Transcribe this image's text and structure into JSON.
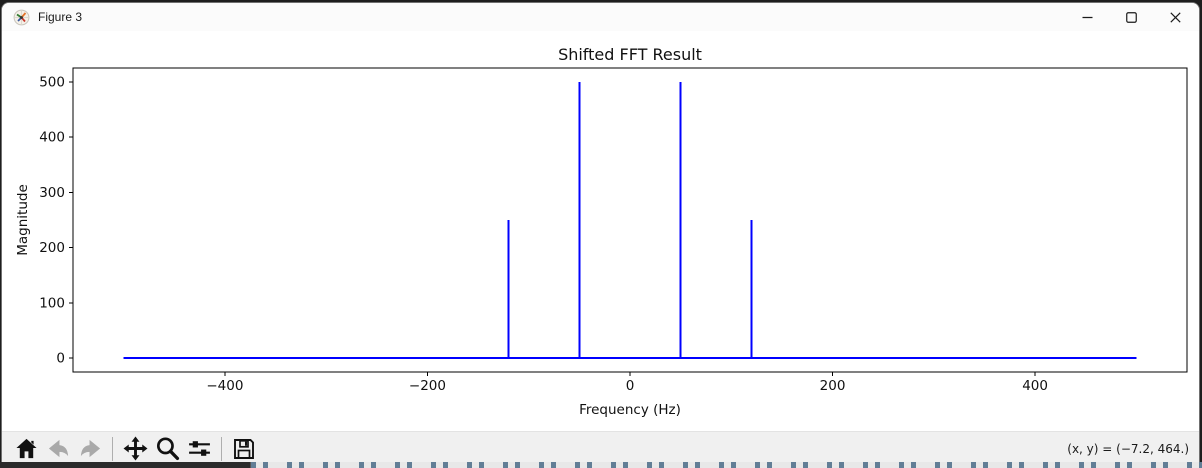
{
  "window": {
    "title": "Figure 3",
    "icon": "matplotlib-logo-icon",
    "controls": {
      "minimize_label": "Minimize",
      "maximize_label": "Maximize",
      "close_label": "Close"
    }
  },
  "chart_data": {
    "type": "line",
    "title": "Shifted FFT Result",
    "xlabel": "Frequency (Hz)",
    "ylabel": "Magnitude",
    "xlim": [
      -550,
      550
    ],
    "ylim": [
      -25,
      525
    ],
    "x_ticks": [
      -400,
      -200,
      0,
      200,
      400
    ],
    "x_tick_labels": [
      "−400",
      "−200",
      "0",
      "200",
      "400"
    ],
    "y_ticks": [
      0,
      100,
      200,
      300,
      400,
      500
    ],
    "y_tick_labels": [
      "0",
      "100",
      "200",
      "300",
      "400",
      "500"
    ],
    "line_color": "#0000ff",
    "grid": false,
    "legend": null,
    "baseline": {
      "x_start": -500,
      "x_end": 500,
      "y": 0
    },
    "spikes": [
      {
        "frequency": -120,
        "magnitude": 250
      },
      {
        "frequency": -50,
        "magnitude": 500
      },
      {
        "frequency": 50,
        "magnitude": 500
      },
      {
        "frequency": 120,
        "magnitude": 250
      }
    ]
  },
  "toolbar": {
    "buttons": [
      {
        "label": "Home",
        "icon": "home-icon",
        "enabled": true
      },
      {
        "label": "Back",
        "icon": "arrow-left-icon",
        "enabled": false
      },
      {
        "label": "Forward",
        "icon": "arrow-right-icon",
        "enabled": false
      },
      {
        "label": "Pan",
        "icon": "move-arrows-icon",
        "enabled": true
      },
      {
        "label": "Zoom",
        "icon": "magnifier-icon",
        "enabled": true
      },
      {
        "label": "Configure subplots",
        "icon": "sliders-icon",
        "enabled": true
      },
      {
        "label": "Save",
        "icon": "floppy-disk-icon",
        "enabled": true
      }
    ],
    "status": "(x, y) = (−7.2, 464.)"
  },
  "colors": {
    "line": "#0000ff",
    "titlebar_bg": "#fbfbfb",
    "toolbar_bg": "#f0f0f0",
    "canvas_bg": "#ffffff",
    "desktop_dark": "#1e1e1e"
  }
}
